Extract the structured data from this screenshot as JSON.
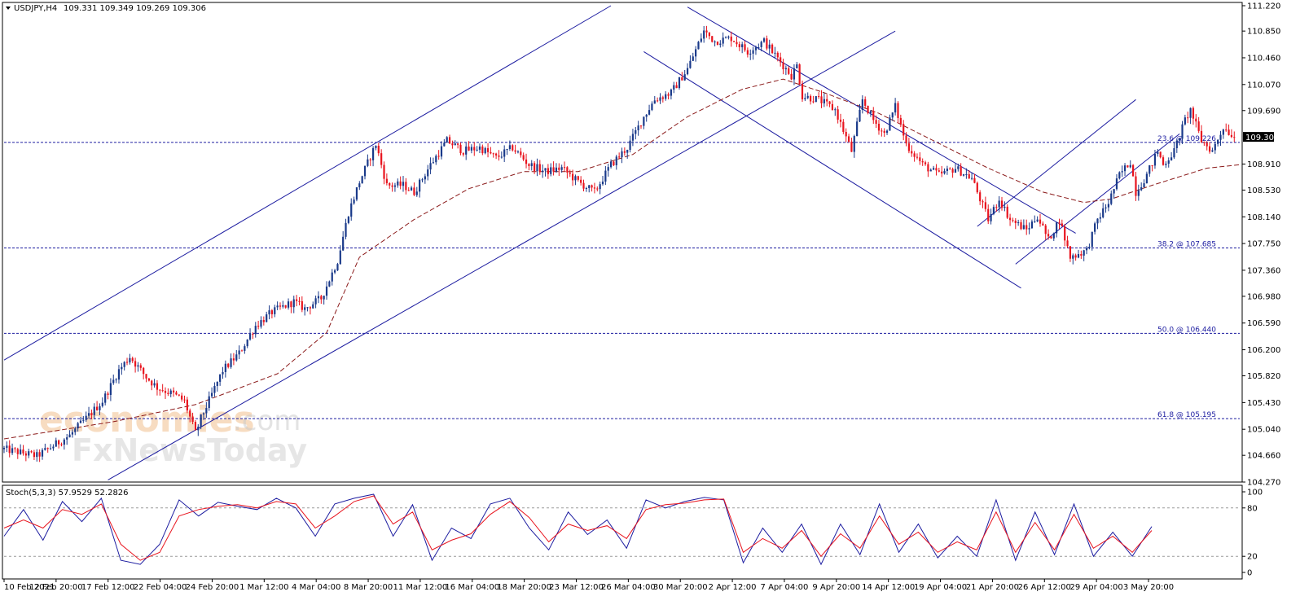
{
  "header": {
    "symbol": "USDJPY,H4",
    "ohlc": "109.331 109.349 109.269 109.306",
    "indicator": "Stoch(5,3,3) 57.9529 52.2826"
  },
  "watermark": {
    "brand": "economies",
    "suffix": ".com",
    "fx": "FxNewsToday"
  },
  "colors": {
    "bull": "#1a3a8a",
    "bear": "#e8141e",
    "channel": "#1c1ca0",
    "ma": "#8b1a1a",
    "fib": "#1c1ca0",
    "stoch_main": "#1c1ca0",
    "stoch_signal": "#e8141e"
  },
  "chart_data": [
    {
      "type": "candlestick",
      "title": "USDJPY,H4",
      "ylim": [
        104.27,
        111.22
      ],
      "y_ticks": [
        "111.220",
        "110.850",
        "110.460",
        "110.070",
        "109.690",
        "109.306",
        "108.910",
        "108.530",
        "108.140",
        "107.750",
        "107.360",
        "106.980",
        "106.590",
        "106.200",
        "105.820",
        "105.430",
        "105.040",
        "104.660",
        "104.270"
      ],
      "x_ticks": [
        "10 Feb 2021",
        "12 Feb 20:00",
        "17 Feb 12:00",
        "22 Feb 04:00",
        "24 Feb 20:00",
        "1 Mar 12:00",
        "4 Mar 04:00",
        "8 Mar 20:00",
        "11 Mar 12:00",
        "16 Mar 04:00",
        "18 Mar 20:00",
        "23 Mar 12:00",
        "26 Mar 04:00",
        "30 Mar 20:00",
        "2 Apr 12:00",
        "7 Apr 04:00",
        "9 Apr 20:00",
        "14 Apr 12:00",
        "19 Apr 04:00",
        "21 Apr 20:00",
        "26 Apr 12:00",
        "29 Apr 04:00",
        "3 May 20:00"
      ],
      "current_price": "109.306",
      "path": [
        [
          0,
          104.75
        ],
        [
          12,
          104.65
        ],
        [
          24,
          104.95
        ],
        [
          36,
          105.45
        ],
        [
          42,
          105.9
        ],
        [
          46,
          106.1
        ],
        [
          52,
          105.8
        ],
        [
          56,
          105.65
        ],
        [
          62,
          105.55
        ],
        [
          66,
          105.45
        ],
        [
          70,
          104.98
        ],
        [
          72,
          105.2
        ],
        [
          80,
          105.9
        ],
        [
          86,
          106.15
        ],
        [
          92,
          106.55
        ],
        [
          98,
          106.75
        ],
        [
          106,
          106.9
        ],
        [
          110,
          106.8
        ],
        [
          116,
          106.95
        ],
        [
          122,
          107.5
        ],
        [
          126,
          108.2
        ],
        [
          130,
          108.65
        ],
        [
          136,
          109.2
        ],
        [
          140,
          108.6
        ],
        [
          146,
          108.6
        ],
        [
          150,
          108.5
        ],
        [
          156,
          108.9
        ],
        [
          162,
          109.25
        ],
        [
          168,
          109.1
        ],
        [
          174,
          109.15
        ],
        [
          180,
          109.0
        ],
        [
          186,
          109.15
        ],
        [
          192,
          108.9
        ],
        [
          198,
          108.8
        ],
        [
          204,
          108.85
        ],
        [
          210,
          108.65
        ],
        [
          216,
          108.5
        ],
        [
          222,
          108.9
        ],
        [
          228,
          109.15
        ],
        [
          234,
          109.6
        ],
        [
          238,
          109.85
        ],
        [
          244,
          109.95
        ],
        [
          250,
          110.3
        ],
        [
          256,
          110.85
        ],
        [
          260,
          110.7
        ],
        [
          266,
          110.75
        ],
        [
          272,
          110.55
        ],
        [
          278,
          110.7
        ],
        [
          284,
          110.4
        ],
        [
          288,
          110.2
        ],
        [
          290,
          110.35
        ],
        [
          292,
          109.9
        ],
        [
          298,
          109.85
        ],
        [
          304,
          109.7
        ],
        [
          310,
          109.1
        ],
        [
          314,
          109.85
        ],
        [
          318,
          109.55
        ],
        [
          322,
          109.35
        ],
        [
          326,
          109.75
        ],
        [
          330,
          109.2
        ],
        [
          336,
          108.9
        ],
        [
          342,
          108.75
        ],
        [
          348,
          108.85
        ],
        [
          354,
          108.7
        ],
        [
          360,
          108.1
        ],
        [
          364,
          108.4
        ],
        [
          368,
          108.1
        ],
        [
          374,
          107.95
        ],
        [
          378,
          108.15
        ],
        [
          382,
          107.8
        ],
        [
          386,
          108.1
        ],
        [
          390,
          107.55
        ],
        [
          396,
          107.65
        ],
        [
          400,
          108.1
        ],
        [
          404,
          108.35
        ],
        [
          408,
          108.75
        ],
        [
          412,
          108.95
        ],
        [
          414,
          108.5
        ],
        [
          418,
          108.75
        ],
        [
          422,
          109.1
        ],
        [
          424,
          108.9
        ],
        [
          428,
          109.1
        ],
        [
          432,
          109.55
        ],
        [
          434,
          109.7
        ],
        [
          438,
          109.25
        ],
        [
          442,
          109.1
        ],
        [
          446,
          109.45
        ],
        [
          450,
          109.306
        ]
      ],
      "moving_average_path": [
        [
          0,
          104.9
        ],
        [
          40,
          105.15
        ],
        [
          70,
          105.4
        ],
        [
          100,
          105.85
        ],
        [
          118,
          106.45
        ],
        [
          130,
          107.55
        ],
        [
          150,
          108.1
        ],
        [
          170,
          108.55
        ],
        [
          190,
          108.8
        ],
        [
          210,
          108.8
        ],
        [
          230,
          109.05
        ],
        [
          250,
          109.6
        ],
        [
          270,
          110.0
        ],
        [
          285,
          110.15
        ],
        [
          300,
          109.95
        ],
        [
          320,
          109.65
        ],
        [
          340,
          109.25
        ],
        [
          360,
          108.85
        ],
        [
          380,
          108.5
        ],
        [
          395,
          108.35
        ],
        [
          405,
          108.4
        ],
        [
          420,
          108.6
        ],
        [
          440,
          108.85
        ],
        [
          452,
          108.9
        ]
      ],
      "fibonacci_levels": [
        {
          "label": "23.6 @ 109.226",
          "value": 109.226
        },
        {
          "label": "38.2 @ 107.685",
          "value": 107.685
        },
        {
          "label": "50.0 @ 106.440",
          "value": 106.44
        },
        {
          "label": "61.8 @ 105.195",
          "value": 105.195
        }
      ],
      "trendlines": [
        {
          "start": [
            0,
            106.05
          ],
          "end": [
            222,
            111.22
          ]
        },
        {
          "start": [
            38,
            104.3
          ],
          "end": [
            326,
            110.85
          ]
        },
        {
          "start": [
            234,
            110.55
          ],
          "end": [
            372,
            107.1
          ]
        },
        {
          "start": [
            250,
            111.2
          ],
          "end": [
            392,
            107.9
          ]
        },
        {
          "start": [
            356,
            108.0
          ],
          "end": [
            414,
            109.85
          ]
        },
        {
          "start": [
            370,
            107.45
          ],
          "end": [
            430,
            109.35
          ]
        }
      ]
    },
    {
      "type": "line",
      "title": "Stoch(5,3,3) 57.9529 52.2826",
      "ylim": [
        0,
        100
      ],
      "y_ticks": [
        "100",
        "80",
        "20",
        "0"
      ],
      "levels": [
        20,
        80
      ],
      "series": [
        {
          "values": [
            45,
            78,
            40,
            88,
            63,
            92,
            15,
            10,
            35,
            90,
            70,
            87,
            82,
            78,
            92,
            80,
            45,
            85,
            92,
            97,
            45,
            84,
            15,
            55,
            42,
            85,
            92,
            55,
            28,
            75,
            47,
            65,
            30,
            90,
            80,
            88,
            93,
            90,
            12,
            55,
            25,
            60,
            10,
            60,
            22,
            85,
            25,
            60,
            18,
            45,
            20,
            90,
            15,
            75,
            22,
            85,
            20,
            50,
            20,
            57
          ]
        },
        {
          "values": [
            55,
            65,
            55,
            78,
            72,
            85,
            35,
            15,
            25,
            70,
            78,
            82,
            84,
            80,
            88,
            85,
            55,
            70,
            88,
            95,
            60,
            75,
            28,
            40,
            48,
            72,
            88,
            68,
            38,
            60,
            52,
            58,
            42,
            78,
            84,
            86,
            90,
            91,
            25,
            42,
            30,
            52,
            20,
            48,
            30,
            70,
            35,
            50,
            25,
            38,
            28,
            75,
            25,
            62,
            28,
            72,
            30,
            45,
            25,
            52
          ]
        }
      ]
    }
  ]
}
